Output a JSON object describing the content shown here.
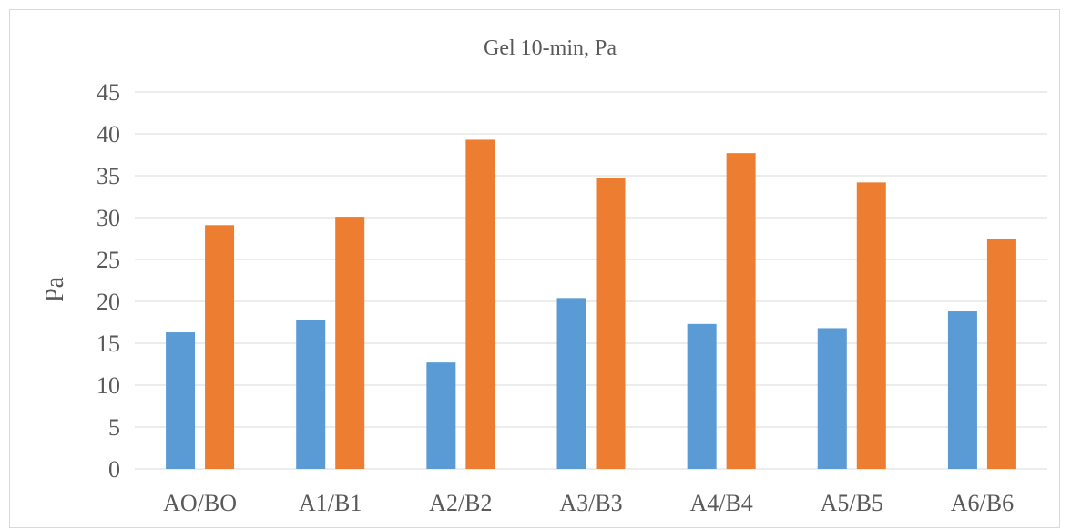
{
  "chart_data": {
    "type": "bar",
    "title": "Gel 10-min, Pa",
    "xlabel": "",
    "ylabel": "Pa",
    "ylim": [
      0,
      45
    ],
    "yticks": [
      0,
      5,
      10,
      15,
      20,
      25,
      30,
      35,
      40,
      45
    ],
    "grid": true,
    "categories": [
      "AO/BO",
      "A1/B1",
      "A2/B2",
      "A3/B3",
      "A4/B4",
      "A5/B5",
      "A6/B6"
    ],
    "series": [
      {
        "color": "#5b9bd5",
        "values": [
          16.3,
          17.8,
          12.7,
          20.4,
          17.3,
          16.8,
          18.8
        ]
      },
      {
        "color": "#ed7d31",
        "values": [
          29.1,
          30.1,
          39.3,
          34.7,
          37.7,
          34.2,
          27.5
        ]
      }
    ],
    "colors": {
      "grid": "#d9d9d9",
      "text": "#595959",
      "border": "#d9d9d9"
    }
  }
}
